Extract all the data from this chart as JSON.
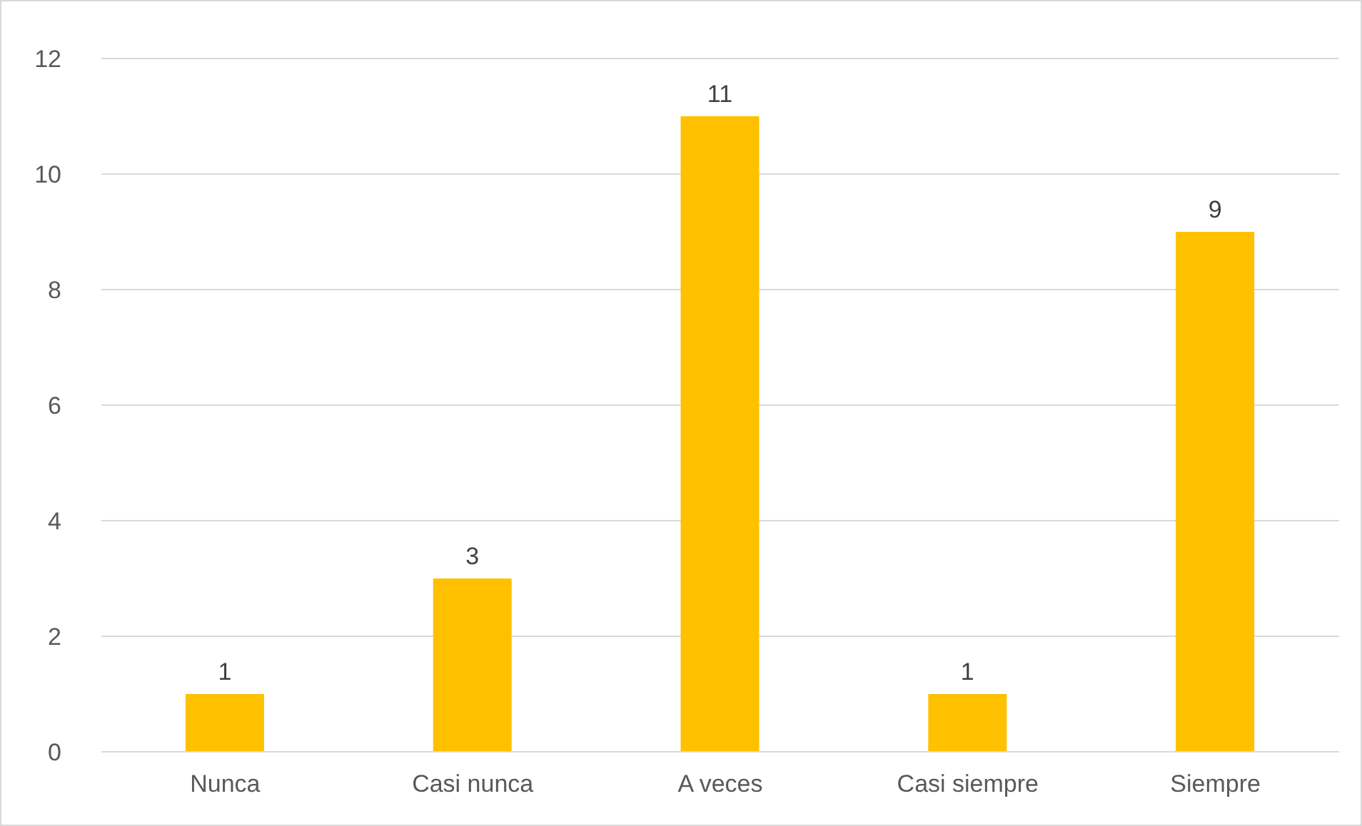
{
  "chart_data": {
    "type": "bar",
    "categories": [
      "Nunca",
      "Casi nunca",
      "A veces",
      "Casi siempre",
      "Siempre"
    ],
    "values": [
      1,
      3,
      11,
      1,
      9
    ],
    "color": "#ffc000",
    "ylim": [
      0,
      12
    ],
    "yticks": [
      0,
      2,
      4,
      6,
      8,
      10,
      12
    ],
    "grid": "y",
    "data_labels": true
  }
}
